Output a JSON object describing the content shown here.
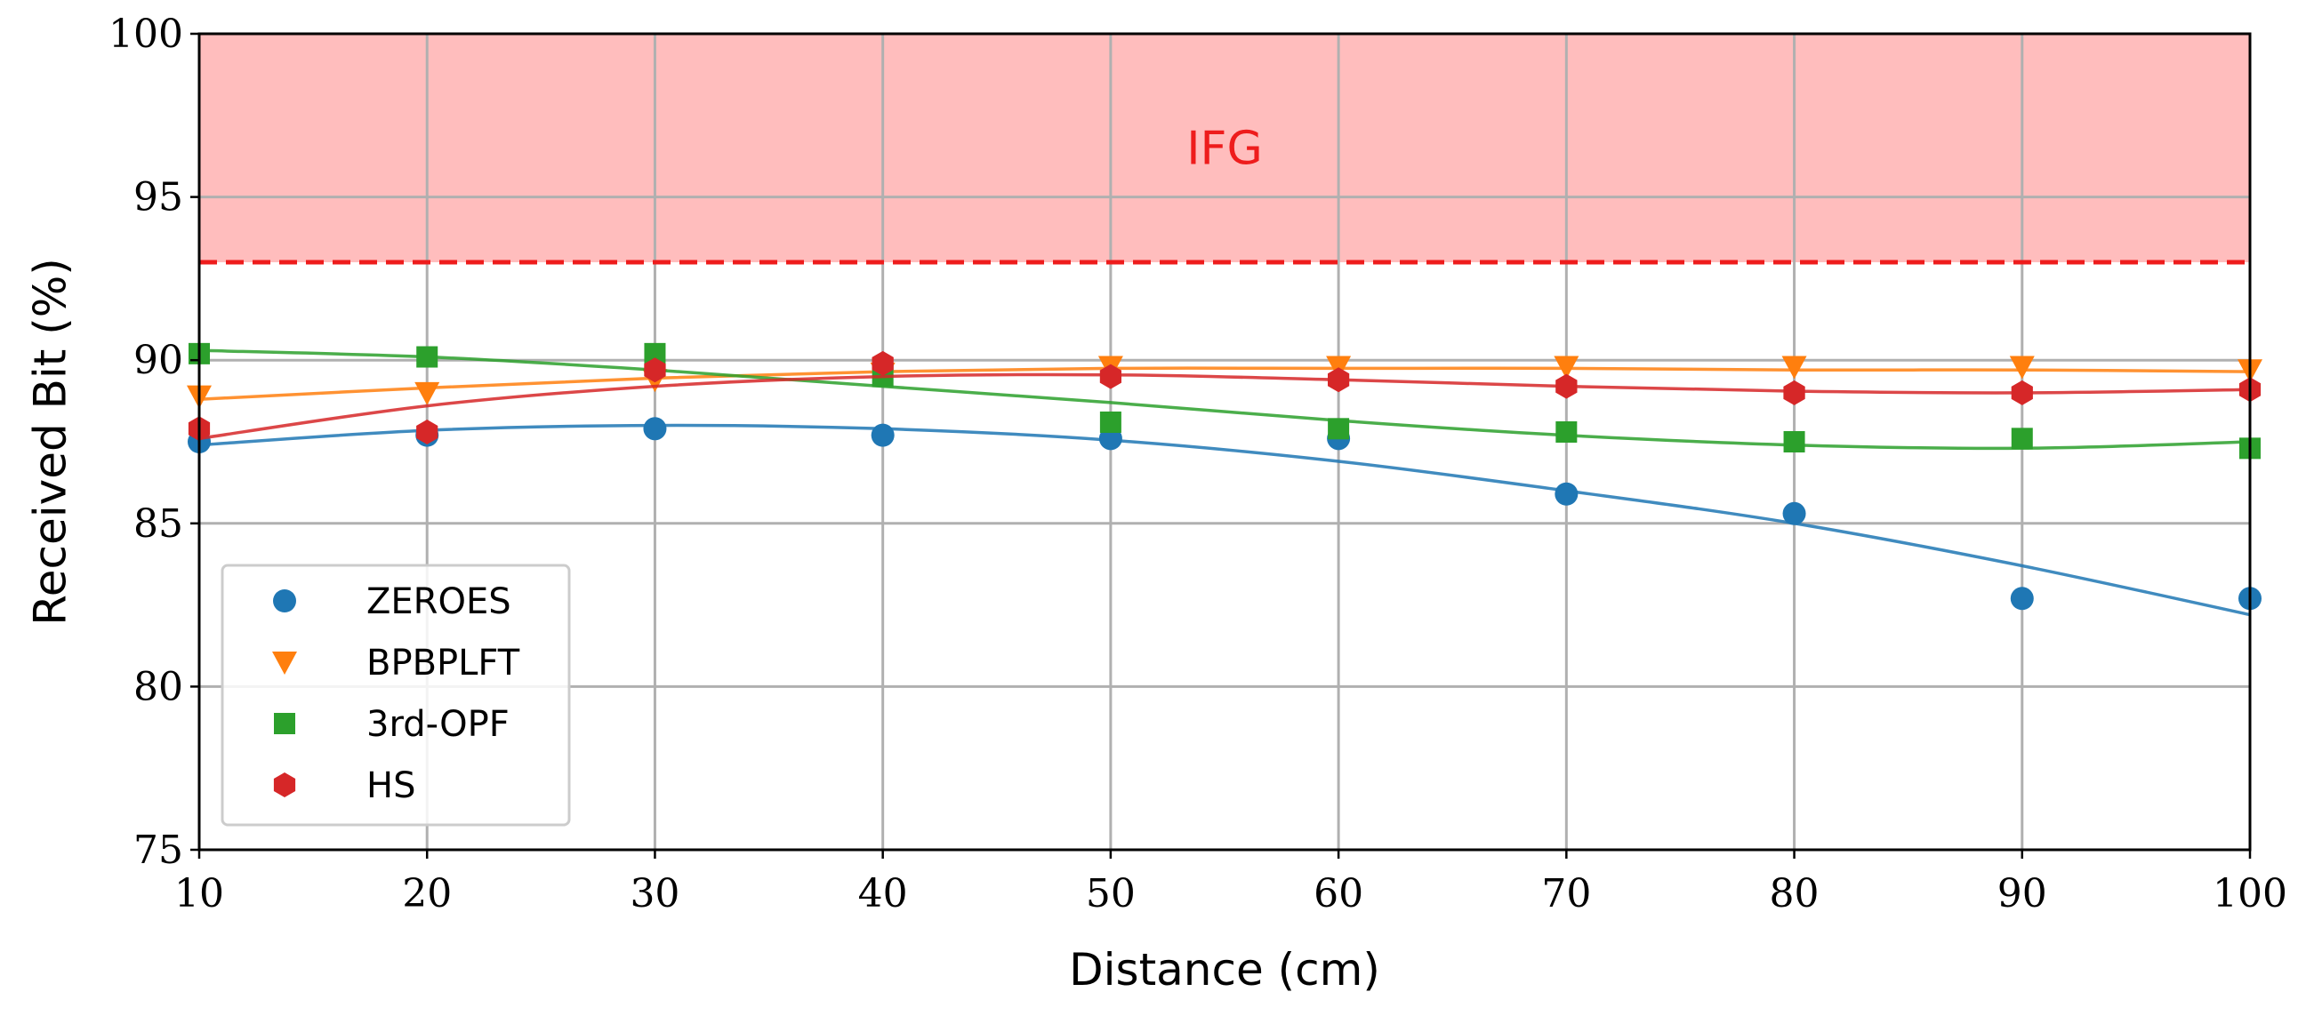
{
  "chart_data": {
    "type": "scatter",
    "title": "",
    "xlabel": "Distance (cm)",
    "ylabel": "Received Bit (%)",
    "xlim": [
      10,
      100
    ],
    "ylim": [
      75,
      100
    ],
    "xticks": [
      "10",
      "20",
      "30",
      "40",
      "50",
      "60",
      "70",
      "80",
      "90",
      "100"
    ],
    "yticks": [
      "75",
      "80",
      "85",
      "90",
      "95",
      "100"
    ],
    "grid": true,
    "legend_position": "lower-left",
    "threshold": {
      "label": "IFG",
      "value": 93,
      "band": [
        93,
        100
      ],
      "fill_color": "#ffbdbd",
      "line_color": "#ee1c1c"
    },
    "x": [
      10,
      20,
      30,
      40,
      50,
      60,
      70,
      80,
      90,
      100
    ],
    "series": [
      {
        "name": "ZEROES",
        "marker": "circle",
        "color": "#1f77b4",
        "values": [
          87.5,
          87.7,
          87.9,
          87.7,
          87.6,
          87.6,
          85.9,
          85.3,
          82.7,
          82.7
        ],
        "fit": [
          87.4,
          87.85,
          88.0,
          87.9,
          87.55,
          86.9,
          86.0,
          85.0,
          83.7,
          82.2
        ]
      },
      {
        "name": "BPBPLFT",
        "marker": "triangle-down",
        "color": "#ff7f0e",
        "values": [
          88.9,
          89.0,
          89.4,
          89.6,
          89.8,
          89.8,
          89.8,
          89.8,
          89.8,
          89.7
        ],
        "fit": [
          88.8,
          89.15,
          89.45,
          89.65,
          89.75,
          89.75,
          89.75,
          89.7,
          89.7,
          89.65
        ]
      },
      {
        "name": "3rd-OPF",
        "marker": "square",
        "color": "#2ca02c",
        "values": [
          90.2,
          90.1,
          90.2,
          89.5,
          88.1,
          87.9,
          87.8,
          87.5,
          87.6,
          87.3
        ],
        "fit": [
          90.3,
          90.1,
          89.7,
          89.2,
          88.7,
          88.15,
          87.7,
          87.4,
          87.3,
          87.5
        ]
      },
      {
        "name": "HS",
        "marker": "hexagon",
        "color": "#d62728",
        "values": [
          87.9,
          87.8,
          89.7,
          89.9,
          89.5,
          89.4,
          89.2,
          89.0,
          89.0,
          89.1
        ],
        "fit": [
          87.6,
          88.6,
          89.2,
          89.5,
          89.55,
          89.4,
          89.2,
          89.05,
          89.0,
          89.1
        ]
      }
    ]
  }
}
